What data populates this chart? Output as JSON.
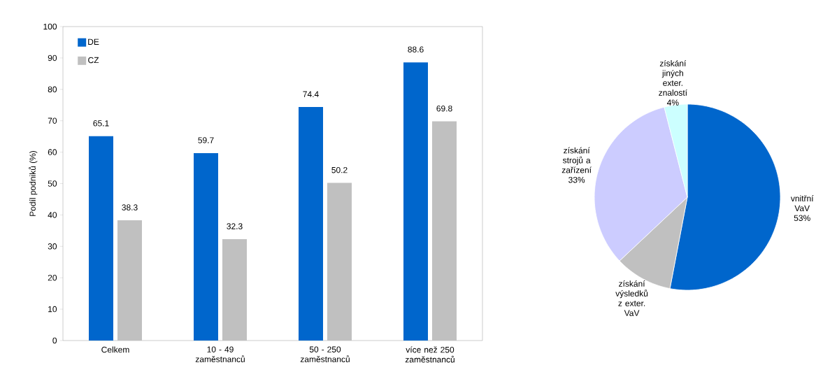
{
  "chart_data": [
    {
      "type": "bar",
      "ylabel": "Podíl podniků (%)",
      "categories": [
        "Celkem",
        "10 - 49 zaměstnanců",
        "50 - 250 zaměstnanců",
        "více než 250 zaměstnanců"
      ],
      "series": [
        {
          "name": "DE",
          "color": "#0066cc",
          "values": [
            65.1,
            59.7,
            74.4,
            88.6
          ]
        },
        {
          "name": "CZ",
          "color": "#c0c0c0",
          "values": [
            38.3,
            32.3,
            50.2,
            69.8
          ]
        }
      ],
      "ylim": [
        0,
        100
      ],
      "yticks": [
        0,
        10,
        20,
        30,
        40,
        50,
        60,
        70,
        80,
        90,
        100
      ],
      "data_labels": true,
      "legend": "top left",
      "grid": false
    },
    {
      "type": "pie",
      "categories": [
        "vnitřní VaV",
        "získání výsledků z exter. VaV",
        "získání strojů a zařízení",
        "získání jiných exter. znalostí"
      ],
      "values": [
        53,
        10,
        33,
        4
      ],
      "value_labels": [
        "53%",
        null,
        "33%",
        "4%"
      ],
      "colors": [
        "#0066cc",
        "#c0c0c0",
        "#ccccff",
        "#ccffff"
      ]
    }
  ]
}
